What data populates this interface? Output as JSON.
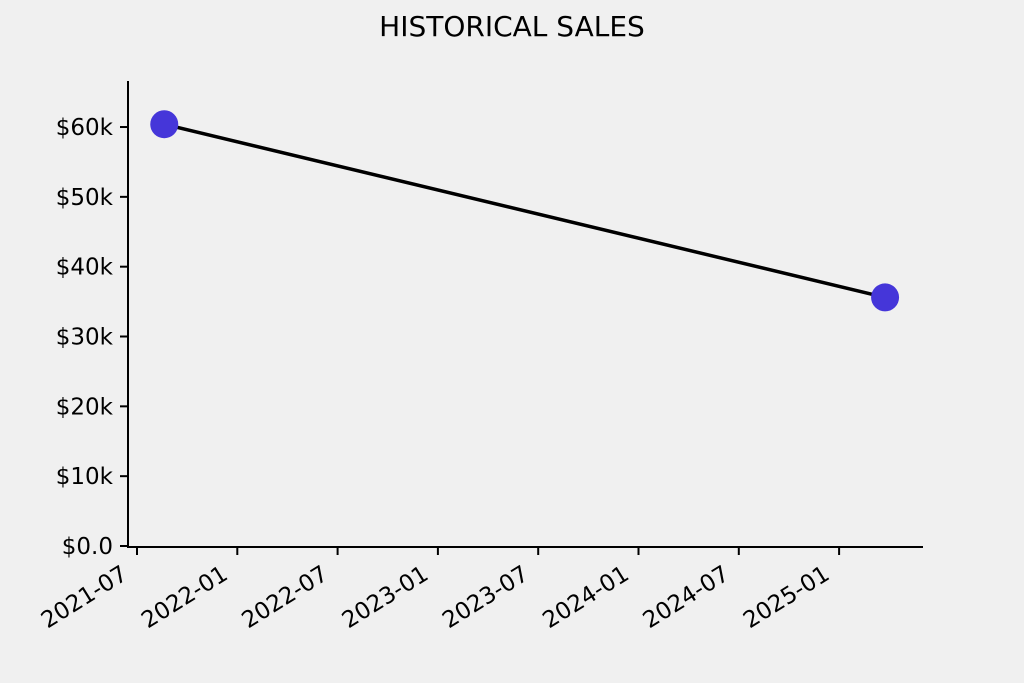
{
  "page": {
    "background_color": "#f0f0f0"
  },
  "chart_data": {
    "type": "line",
    "title": "HISTORICAL SALES",
    "title_color": "#000000",
    "background": "#f0f0f0",
    "grid": false,
    "legend": false,
    "axis_color": "#000000",
    "tick_label_color": "#000000",
    "x_tick_rotation_deg": 32,
    "xlabel": "",
    "ylabel": "",
    "x_ticks": [
      {
        "label": "2021-07",
        "months": 0
      },
      {
        "label": "2022-01",
        "months": 6
      },
      {
        "label": "2022-07",
        "months": 12
      },
      {
        "label": "2023-01",
        "months": 18
      },
      {
        "label": "2023-07",
        "months": 24
      },
      {
        "label": "2024-01",
        "months": 30
      },
      {
        "label": "2024-07",
        "months": 36
      },
      {
        "label": "2025-01",
        "months": 42
      }
    ],
    "y_ticks": [
      {
        "label": "$0.0",
        "value": 0
      },
      {
        "label": "$10k",
        "value": 10000
      },
      {
        "label": "$20k",
        "value": 20000
      },
      {
        "label": "$30k",
        "value": 30000
      },
      {
        "label": "$40k",
        "value": 40000
      },
      {
        "label": "$50k",
        "value": 50000
      },
      {
        "label": "$60k",
        "value": 60000
      }
    ],
    "ylim": [
      0,
      66600
    ],
    "x_range_dates": [
      "2021-06",
      "2025-06"
    ],
    "series": [
      {
        "name": "sales",
        "line_color": "#000000",
        "line_width": 3.5,
        "marker_color": "#4536d9",
        "marker_radius": 14,
        "points": [
          {
            "date": "2021-08",
            "months": 1.63,
            "value": 60400
          },
          {
            "date": "2025-03",
            "months": 44.75,
            "value": 35600
          }
        ]
      }
    ]
  }
}
